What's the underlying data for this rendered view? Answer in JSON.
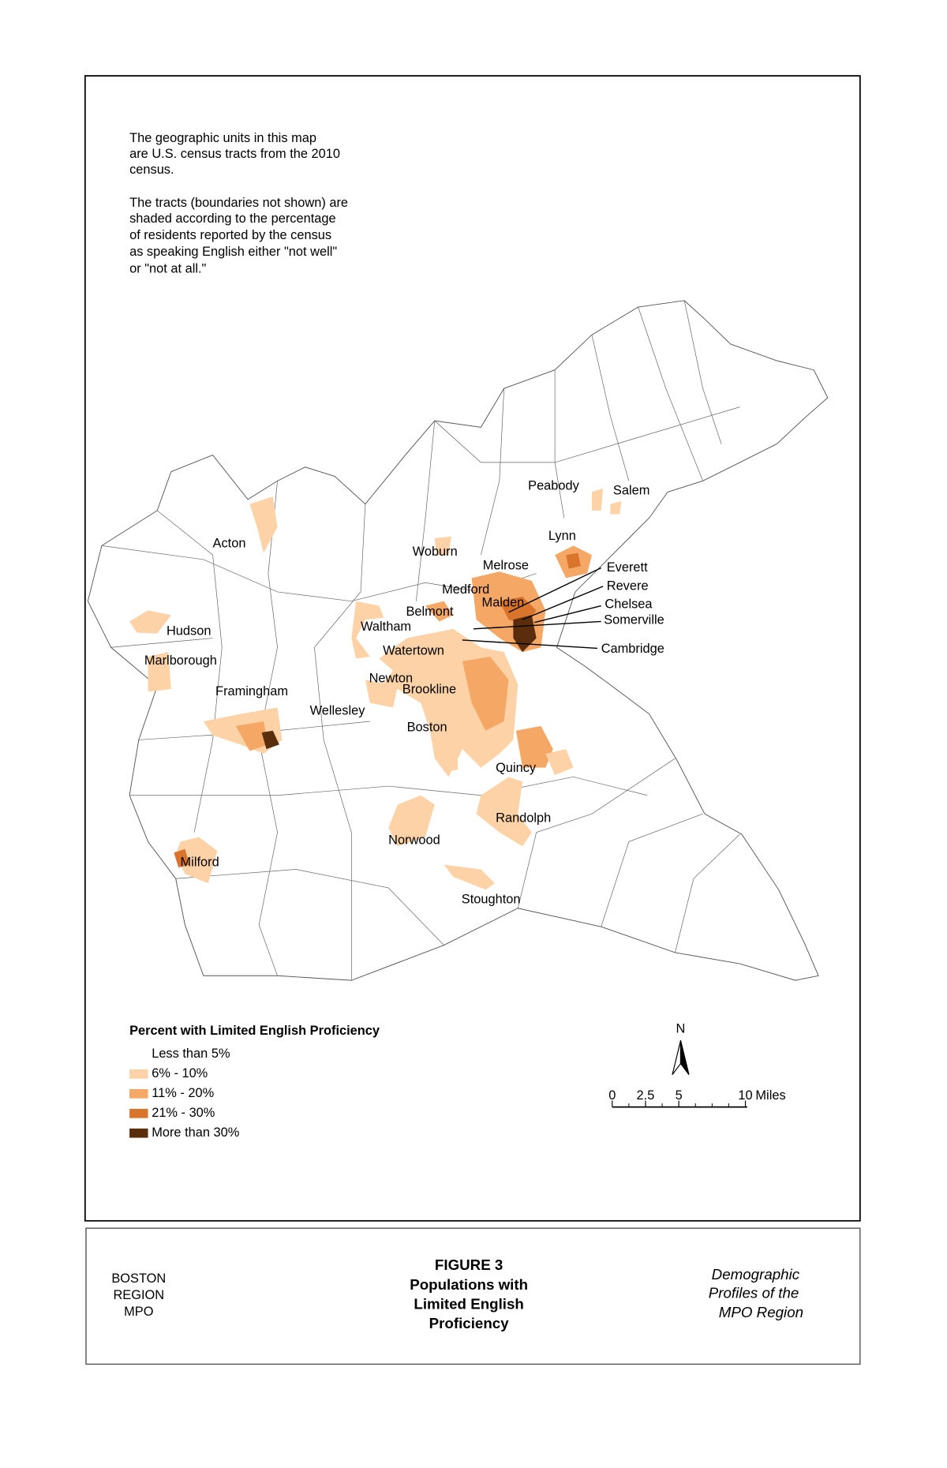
{
  "note": {
    "paragraph1": [
      "The geographic units in this map",
      "are U.S. census tracts from the 2010",
      "census."
    ],
    "paragraph2": [
      "The tracts (boundaries not shown) are",
      "shaded according to the percentage",
      "of residents reported by the census",
      "as speaking English either \"not well\"",
      "or \"not at all.\""
    ]
  },
  "towns": [
    "Peabody",
    "Salem",
    "Acton",
    "Woburn",
    "Lynn",
    "Melrose",
    "Everett",
    "Medford",
    "Revere",
    "Malden",
    "Chelsea",
    "Belmont",
    "Somerville",
    "Hudson",
    "Waltham",
    "Watertown",
    "Cambridge",
    "Marlborough",
    "Newton",
    "Framingham",
    "Brookline",
    "Wellesley",
    "Boston",
    "Quincy",
    "Randolph",
    "Norwood",
    "Milford",
    "Stoughton"
  ],
  "legend": {
    "title": "Percent with Limited English Proficiency",
    "items": [
      {
        "label": "Less than 5%",
        "color": "#ffffff"
      },
      {
        "label": "6% - 10%",
        "color": "#fcd2a6"
      },
      {
        "label": "11% - 20%",
        "color": "#f5a866"
      },
      {
        "label": "21% - 30%",
        "color": "#d9742c"
      },
      {
        "label": "More than 30%",
        "color": "#5a2d0c"
      }
    ]
  },
  "north": "N",
  "scale": {
    "labels": [
      "0",
      "2.5",
      "5",
      "10"
    ],
    "unit": "Miles"
  },
  "footer": {
    "left": [
      "BOSTON",
      "REGION",
      "MPO"
    ],
    "center": [
      "FIGURE 3",
      "Populations with",
      "Limited English",
      "Proficiency"
    ],
    "right": [
      "Demographic",
      "Profiles of the",
      "MPO Region"
    ]
  }
}
